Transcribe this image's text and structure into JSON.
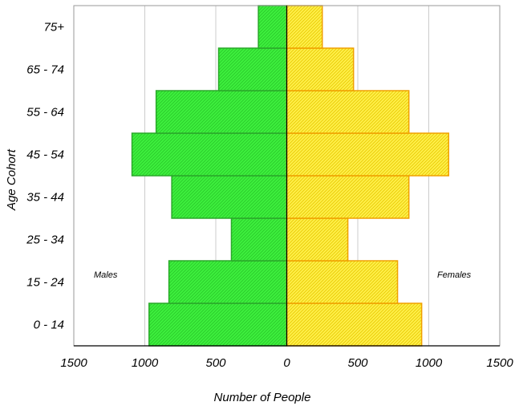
{
  "chart_data": {
    "type": "bar",
    "orientation": "horizontal",
    "style": "population-pyramid",
    "categories": [
      "0 - 14",
      "15 - 24",
      "25 - 34",
      "35 - 44",
      "45 - 54",
      "55 - 64",
      "65 - 74",
      "75+"
    ],
    "series": [
      {
        "name": "Males",
        "values": [
          970,
          830,
          390,
          810,
          1090,
          920,
          480,
          200
        ],
        "color": "#3ef03e",
        "edge": "#2aa82a",
        "side": "left"
      },
      {
        "name": "Females",
        "values": [
          950,
          780,
          430,
          860,
          1140,
          860,
          470,
          250
        ],
        "color": "#fff04a",
        "edge": "#f0a000",
        "side": "right"
      }
    ],
    "xlabel": "Number of People",
    "ylabel": "Age Cohort",
    "xlim": [
      -1500,
      1500
    ],
    "x_ticks": [
      -1500,
      -1000,
      -500,
      0,
      500,
      1000,
      1500
    ],
    "x_tick_labels": [
      "1500",
      "1000",
      "500",
      "0",
      "500",
      "1000",
      "1500"
    ],
    "grid": "vertical",
    "annotations": {
      "left": "Males",
      "right": "Females"
    }
  }
}
